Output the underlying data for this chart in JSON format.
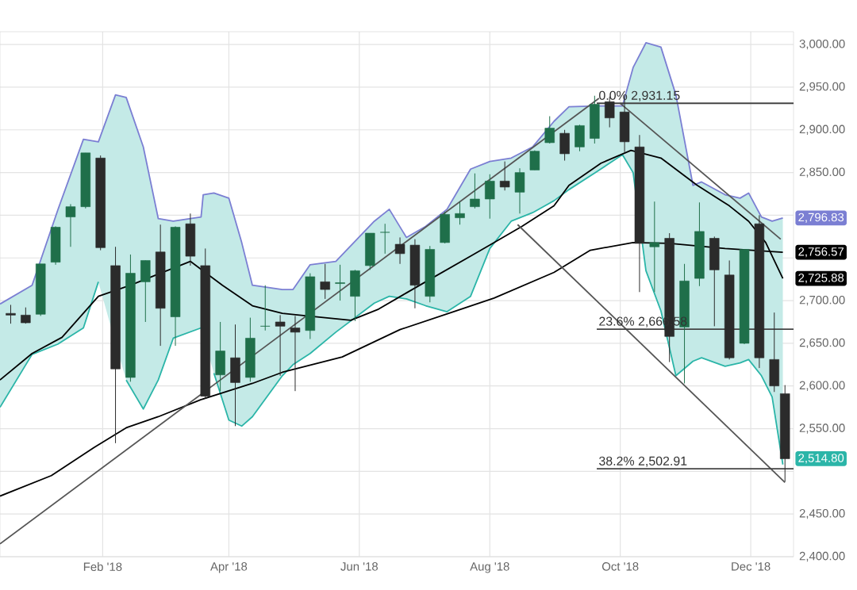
{
  "chart_data": {
    "type": "candlestick",
    "x": [
      "2017-12-20",
      "2017-12-27",
      "2018-01-03",
      "2018-01-10",
      "2018-01-17",
      "2018-01-24",
      "2018-01-31",
      "2018-02-07",
      "2018-02-14",
      "2018-02-21",
      "2018-02-28",
      "2018-03-07",
      "2018-03-14",
      "2018-03-21",
      "2018-03-28",
      "2018-04-04",
      "2018-04-11",
      "2018-04-18",
      "2018-04-25",
      "2018-05-02",
      "2018-05-09",
      "2018-05-16",
      "2018-05-23",
      "2018-05-30",
      "2018-06-06",
      "2018-06-13",
      "2018-06-20",
      "2018-06-27",
      "2018-07-04",
      "2018-07-11",
      "2018-07-18",
      "2018-07-25",
      "2018-08-01",
      "2018-08-08",
      "2018-08-15",
      "2018-08-22",
      "2018-08-29",
      "2018-09-05",
      "2018-09-12",
      "2018-09-19",
      "2018-09-26",
      "2018-10-03",
      "2018-10-10",
      "2018-10-17",
      "2018-10-24",
      "2018-10-31",
      "2018-11-07",
      "2018-11-14",
      "2018-11-21",
      "2018-11-28",
      "2018-12-05",
      "2018-12-12",
      "2018-12-17"
    ],
    "ohlc": [
      [
        2685,
        2695,
        2673,
        2683
      ],
      [
        2683,
        2692,
        2673,
        2674
      ],
      [
        2684,
        2743,
        2682,
        2743
      ],
      [
        2745,
        2787,
        2742,
        2786
      ],
      [
        2798,
        2813,
        2763,
        2810
      ],
      [
        2810,
        2873,
        2808,
        2873
      ],
      [
        2867,
        2870,
        2759,
        2762
      ],
      [
        2741,
        2763,
        2533,
        2620
      ],
      [
        2610,
        2754,
        2605,
        2732
      ],
      [
        2722,
        2747,
        2675,
        2747
      ],
      [
        2757,
        2789,
        2647,
        2691
      ],
      [
        2681,
        2787,
        2647,
        2786
      ],
      [
        2790,
        2802,
        2741,
        2752
      ],
      [
        2741,
        2761,
        2585,
        2588
      ],
      [
        2613,
        2675,
        2594,
        2641
      ],
      [
        2633,
        2672,
        2553,
        2604
      ],
      [
        2610,
        2680,
        2605,
        2656
      ],
      [
        2670,
        2718,
        2665,
        2670
      ],
      [
        2675,
        2683,
        2612,
        2670
      ],
      [
        2668,
        2682,
        2594,
        2663
      ],
      [
        2665,
        2732,
        2655,
        2728
      ],
      [
        2722,
        2743,
        2702,
        2713
      ],
      [
        2720,
        2742,
        2700,
        2721
      ],
      [
        2705,
        2736,
        2676,
        2735
      ],
      [
        2741,
        2779,
        2736,
        2779
      ],
      [
        2780,
        2790,
        2755,
        2780
      ],
      [
        2766,
        2774,
        2743,
        2755
      ],
      [
        2765,
        2772,
        2691,
        2718
      ],
      [
        2705,
        2764,
        2698,
        2760
      ],
      [
        2768,
        2804,
        2767,
        2801
      ],
      [
        2797,
        2816,
        2789,
        2802
      ],
      [
        2810,
        2849,
        2808,
        2819
      ],
      [
        2819,
        2848,
        2796,
        2840
      ],
      [
        2840,
        2863,
        2829,
        2833
      ],
      [
        2827,
        2855,
        2802,
        2850
      ],
      [
        2853,
        2876,
        2853,
        2875
      ],
      [
        2885,
        2916,
        2884,
        2902
      ],
      [
        2896,
        2900,
        2864,
        2872
      ],
      [
        2880,
        2906,
        2875,
        2905
      ],
      [
        2890,
        2940,
        2884,
        2930
      ],
      [
        2933,
        2939,
        2903,
        2914
      ],
      [
        2921,
        2940,
        2874,
        2886
      ],
      [
        2880,
        2894,
        2710,
        2767
      ],
      [
        2763,
        2816,
        2710,
        2768
      ],
      [
        2773,
        2779,
        2628,
        2658
      ],
      [
        2669,
        2743,
        2603,
        2723
      ],
      [
        2726,
        2815,
        2717,
        2781
      ],
      [
        2773,
        2775,
        2670,
        2736
      ],
      [
        2730,
        2747,
        2631,
        2633
      ],
      [
        2650,
        2760,
        2649,
        2760
      ],
      [
        2790,
        2800,
        2621,
        2633
      ],
      [
        2631,
        2686,
        2593,
        2600
      ],
      [
        2591,
        2601,
        2488,
        2514.8
      ]
    ],
    "series": [
      {
        "type": "line",
        "color": "#2bb5a8",
        "x": [
          "2017-12-15",
          "2017-12-30",
          "2018-01-11",
          "2018-01-23",
          "2018-01-30",
          "2018-02-07",
          "2018-02-12",
          "2018-02-20",
          "2018-02-27",
          "2018-03-06",
          "2018-03-19",
          "2018-03-20",
          "2018-03-25",
          "2018-04-01",
          "2018-04-07",
          "2018-04-12",
          "2018-04-26",
          "2018-05-01",
          "2018-05-09",
          "2018-05-21",
          "2018-06-08",
          "2018-06-15",
          "2018-06-23",
          "2018-07-02",
          "2018-07-12",
          "2018-07-23",
          "2018-08-01",
          "2018-08-11",
          "2018-08-21",
          "2018-08-31",
          "2018-09-07",
          "2018-09-20",
          "2018-10-02",
          "2018-10-07",
          "2018-10-13",
          "2018-10-20",
          "2018-10-27",
          "2018-11-04",
          "2018-11-08",
          "2018-11-19",
          "2018-11-26",
          "2018-11-30",
          "2018-12-06",
          "2018-12-11",
          "2018-12-16"
        ],
        "values": [
          2575,
          2637,
          2649,
          2668,
          2722,
          null,
          2607,
          2573,
          2607,
          2656,
          2668,
          null,
          2615,
          2560,
          2553,
          2564,
          2612,
          2625,
          2638,
          2663,
          2697,
          2705,
          2702,
          2694,
          2687,
          2705,
          2761,
          2793,
          2803,
          2817,
          2830,
          2851,
          2871,
          2850,
          2735,
          2688,
          2612,
          2629,
          2633,
          2623,
          2627,
          2631,
          2612,
          2587,
          2508
        ],
        "lower": [
          2575,
          2637,
          2649,
          2668,
          2722,
          2650,
          2607,
          2573,
          2607,
          2656,
          2668,
          2658,
          2615,
          2560,
          2553,
          2564,
          2612,
          2625,
          2638,
          2663,
          2697,
          2705,
          2702,
          2694,
          2687,
          2705,
          2761,
          2793,
          2803,
          2817,
          2830,
          2851,
          2871,
          2850,
          2735,
          2688,
          2612,
          2629,
          2633,
          2623,
          2627,
          2631,
          2612,
          2587,
          2508
        ],
        "upper": [
          2696,
          2718,
          2806,
          2889,
          2886,
          2941,
          2938,
          2880,
          2796,
          2793,
          2798,
          2824,
          2826,
          2820,
          2768,
          2718,
          2713,
          2713,
          2742,
          2746,
          2793,
          2807,
          2774,
          2787,
          2807,
          2854,
          2863,
          2867,
          2880,
          2910,
          2927,
          2928,
          2928,
          2973,
          3002,
          2997,
          2941,
          2835,
          2839,
          2824,
          2820,
          2826,
          2798,
          2793,
          2796.83
        ]
      },
      {
        "type": "line",
        "color": "#7b7fd3",
        "x": [
          "2017-12-15",
          "2017-12-30",
          "2018-01-11",
          "2018-01-23",
          "2018-01-30",
          "2018-02-07",
          "2018-02-12",
          "2018-02-20",
          "2018-02-27",
          "2018-03-06",
          "2018-03-19",
          "2018-03-20",
          "2018-03-25",
          "2018-04-01",
          "2018-04-07",
          "2018-04-12",
          "2018-04-26",
          "2018-05-01",
          "2018-05-09",
          "2018-05-21",
          "2018-06-08",
          "2018-06-15",
          "2018-06-23",
          "2018-07-02",
          "2018-07-12",
          "2018-07-23",
          "2018-08-01",
          "2018-08-11",
          "2018-08-21",
          "2018-08-31",
          "2018-09-07",
          "2018-09-20",
          "2018-10-02",
          "2018-10-07",
          "2018-10-13",
          "2018-10-20",
          "2018-10-27",
          "2018-11-04",
          "2018-11-08",
          "2018-11-19",
          "2018-11-26",
          "2018-11-30",
          "2018-12-06",
          "2018-12-11",
          "2018-12-16"
        ],
        "values": [
          2696,
          2718,
          2806,
          2889,
          2886,
          2941,
          2938,
          2880,
          2796,
          2793,
          2798,
          2824,
          2826,
          2820,
          2768,
          2718,
          2713,
          2713,
          2742,
          2746,
          2793,
          2807,
          2774,
          2787,
          2807,
          2854,
          2863,
          2867,
          2880,
          2910,
          2927,
          2928,
          2928,
          2973,
          3002,
          2997,
          2941,
          2835,
          2839,
          2824,
          2820,
          2826,
          2798,
          2793,
          2796.83
        ]
      },
      {
        "type": "line",
        "color": "#000000",
        "x": [
          "2017-12-15",
          "2017-12-30",
          "2018-01-13",
          "2018-01-30",
          "2018-02-14",
          "2018-02-27",
          "2018-03-14",
          "2018-03-29",
          "2018-04-12",
          "2018-04-26",
          "2018-05-04",
          "2018-05-28",
          "2018-06-10",
          "2018-06-23",
          "2018-07-02",
          "2018-07-23",
          "2018-08-01",
          "2018-08-16",
          "2018-08-31",
          "2018-09-07",
          "2018-09-22",
          "2018-10-06",
          "2018-10-20",
          "2018-11-06",
          "2018-11-21",
          "2018-11-30",
          "2018-12-08",
          "2018-12-16"
        ],
        "values": [
          2607,
          2638,
          2657,
          2705,
          2718,
          2731,
          2746,
          2718,
          2694,
          2685,
          2683,
          2677,
          2690,
          2709,
          2722,
          2752,
          2765,
          2787,
          2811,
          2835,
          2861,
          2876,
          2867,
          2835,
          2811,
          2793,
          2768,
          2725.88
        ]
      },
      {
        "type": "line",
        "color": "#000000",
        "x": [
          "2017-12-15",
          "2018-01-08",
          "2018-01-28",
          "2018-02-12",
          "2018-02-27",
          "2018-03-19",
          "2018-03-29",
          "2018-04-12",
          "2018-04-26",
          "2018-05-24",
          "2018-06-20",
          "2018-07-15",
          "2018-08-03",
          "2018-08-31",
          "2018-09-17",
          "2018-10-07",
          "2018-10-24",
          "2018-11-19",
          "2018-12-16"
        ],
        "values": [
          2471,
          2495,
          2528,
          2551,
          2564,
          2584,
          2592,
          2603,
          2616,
          2634,
          2666,
          2687,
          2703,
          2733,
          2759,
          2768,
          2767,
          2761,
          2756.57
        ]
      },
      {
        "type": "line",
        "color": "#555555",
        "x": [
          "2017-12-15",
          "2018-09-21"
        ],
        "values": [
          2415,
          2937
        ]
      },
      {
        "type": "line",
        "color": "#555555",
        "x": [
          "2018-08-14",
          "2018-12-17"
        ],
        "values": [
          2789,
          2487
        ]
      },
      {
        "type": "line",
        "color": "#555555",
        "x": [
          "2018-10-01",
          "2018-12-15"
        ],
        "values": [
          2931,
          2772
        ]
      },
      {
        "type": "line",
        "color": "#444444",
        "x": [
          "2018-09-20",
          "2018-12-21"
        ],
        "values": [
          2931.15,
          2931.15
        ]
      },
      {
        "type": "line",
        "color": "#444444",
        "x": [
          "2018-09-20",
          "2018-12-21"
        ],
        "values": [
          2666.58,
          2666.58
        ]
      },
      {
        "type": "line",
        "color": "#444444",
        "x": [
          "2018-09-20",
          "2018-12-21"
        ],
        "values": [
          2502.91,
          2502.91
        ]
      }
    ],
    "annotations": [
      {
        "text": "0.0% 2,931.15",
        "x": "2018-09-20",
        "y": 2931.15
      },
      {
        "text": "23.6% 2,666.58",
        "x": "2018-09-20",
        "y": 2666.58
      },
      {
        "text": "38.2% 2,502.91",
        "x": "2018-09-20",
        "y": 2502.91
      },
      {
        "text": "2,796.83",
        "x": "2018-12-16",
        "y": 2796.83
      },
      {
        "text": "2,756.57",
        "x": "2018-12-16",
        "y": 2756.57
      },
      {
        "text": "2,725.88",
        "x": "2018-12-16",
        "y": 2725.88
      },
      {
        "text": "2,514.80",
        "x": "2018-12-17",
        "y": 2514.8
      }
    ],
    "xlim": [
      "2017-12-15",
      "2018-12-21"
    ],
    "xticks": [
      {
        "value": "2018-02-01",
        "label": "Feb '18"
      },
      {
        "value": "2018-04-01",
        "label": "Apr '18"
      },
      {
        "value": "2018-06-01",
        "label": "Jun '18"
      },
      {
        "value": "2018-08-01",
        "label": "Aug '18"
      },
      {
        "value": "2018-10-01",
        "label": "Oct '18"
      },
      {
        "value": "2018-12-01",
        "label": "Dec '18"
      }
    ],
    "ylim": [
      2400,
      3015
    ],
    "yticks": [
      {
        "value": 2400,
        "label": "2,400.00"
      },
      {
        "value": 2450,
        "label": "2,450.00"
      },
      {
        "value": 2500,
        "label": null
      },
      {
        "value": 2550,
        "label": "2,550.00"
      },
      {
        "value": 2600,
        "label": "2,600.00"
      },
      {
        "value": 2650,
        "label": "2,650.00"
      },
      {
        "value": 2700,
        "label": "2,700.00"
      },
      {
        "value": 2750,
        "label": null
      },
      {
        "value": 2800,
        "label": null
      },
      {
        "value": 2850,
        "label": "2,850.00"
      },
      {
        "value": 2900,
        "label": "2,900.00"
      },
      {
        "value": 2950,
        "label": "2,950.00"
      },
      {
        "value": 3000,
        "label": "3,000.00"
      }
    ],
    "grid": true
  }
}
